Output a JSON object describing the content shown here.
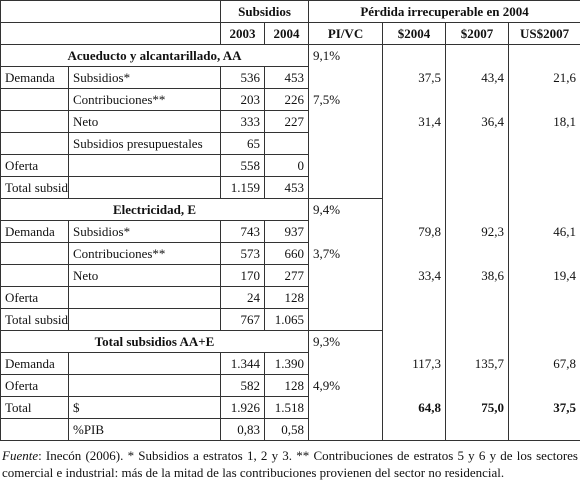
{
  "table": {
    "header": [
      [
        "Subsidios",
        "Pérdida irrecuperable en 2004"
      ],
      [
        "2003",
        "2004",
        "PI/VC",
        "$2004",
        "$2007",
        "US$2007"
      ]
    ],
    "rows": [
      {
        "section": "Acueducto y alcantarillado, AA",
        "right": [
          "9,1%",
          null,
          null,
          null
        ]
      },
      {
        "cells": [
          "Demanda",
          "Subsidios*",
          "536",
          "453",
          null,
          "37,5",
          "43,4",
          "21,6"
        ]
      },
      {
        "cells": [
          null,
          "Contribuciones**",
          "203",
          "226",
          "7,5%",
          null,
          null,
          null
        ]
      },
      {
        "cells": [
          null,
          "Neto",
          "333",
          "227",
          null,
          "31,4",
          "36,4",
          "18,1"
        ]
      },
      {
        "cells": [
          null,
          "Subsidios presupuestales",
          "65",
          null,
          null,
          null,
          null,
          null
        ]
      },
      {
        "cells": [
          "Oferta",
          null,
          "558",
          "0",
          null,
          null,
          null,
          null
        ]
      },
      {
        "cells": [
          "Total subsidios AA",
          null,
          "1.159",
          "453",
          null,
          null,
          null,
          null
        ]
      },
      {
        "section": "Electricidad, E",
        "right": [
          "9,4%",
          null,
          null,
          null
        ]
      },
      {
        "cells": [
          "Demanda",
          "Subsidios*",
          "743",
          "937",
          null,
          "79,8",
          "92,3",
          "46,1"
        ]
      },
      {
        "cells": [
          null,
          "Contribuciones**",
          "573",
          "660",
          "3,7%",
          null,
          null,
          null
        ]
      },
      {
        "cells": [
          null,
          "Neto",
          "170",
          "277",
          null,
          "33,4",
          "38,6",
          "19,4"
        ]
      },
      {
        "cells": [
          "Oferta",
          null,
          "24",
          "128",
          null,
          null,
          null,
          null
        ]
      },
      {
        "cells": [
          "Total subsidios E",
          null,
          "767",
          "1.065",
          null,
          null,
          null,
          null
        ]
      },
      {
        "section": "Total subsidios AA+E",
        "right": [
          "9,3%",
          null,
          null,
          null
        ]
      },
      {
        "cells": [
          "Demanda",
          null,
          "1.344",
          "1.390",
          null,
          "117,3",
          "135,7",
          "67,8"
        ]
      },
      {
        "cells": [
          "Oferta",
          null,
          "582",
          "128",
          "4,9%",
          null,
          null,
          null
        ]
      },
      {
        "cells": [
          "Total",
          "$",
          "1.926",
          "1.518",
          null,
          "64,8",
          "75,0",
          "37,5"
        ],
        "bold_right": true
      },
      {
        "cells": [
          null,
          "%PIB",
          "0,83",
          "0,58",
          null,
          null,
          null,
          null
        ]
      }
    ]
  },
  "footnote": {
    "source_label": "Fuente",
    "text": ": Inecón (2006). * Subsidios a estratos 1, 2 y 3. ** Contribuciones de estratos 5 y 6 y de los sectores comercial e industrial: más de la mitad de las contribuciones provienen del sector no residencial."
  }
}
